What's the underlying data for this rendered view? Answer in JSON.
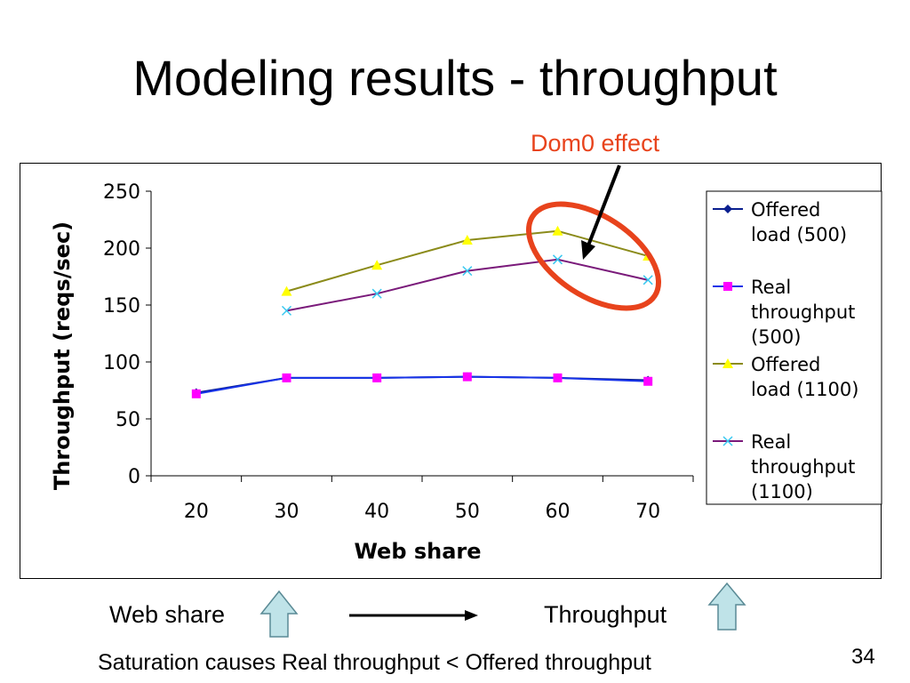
{
  "slide": {
    "title": "Modeling results - throughput",
    "annotation": "Dom0 effect",
    "annotation_color": "#e8431c",
    "caption_left": "Web share",
    "caption_right": "Throughput",
    "bottom_note": "Saturation causes Real throughput < Offered throughput",
    "page_number": "34"
  },
  "chart_data": {
    "type": "line",
    "title": "",
    "xlabel": "Web share",
    "ylabel": "Throughput (reqs/sec)",
    "categories": [
      "20",
      "30",
      "40",
      "50",
      "60",
      "70"
    ],
    "ylim": [
      0,
      250
    ],
    "yticks": [
      "0",
      "50",
      "100",
      "150",
      "200",
      "250"
    ],
    "grid": false,
    "legend_position": "right",
    "series": [
      {
        "name": "Offered load (500)",
        "legend_lines": [
          "Offered",
          "load (500)"
        ],
        "values": [
          73,
          86,
          86,
          87,
          86,
          84
        ],
        "color": "#0a1f8f",
        "marker": "diamond"
      },
      {
        "name": "Real throughput (500)",
        "legend_lines": [
          "Real",
          "throughput",
          "(500)"
        ],
        "values": [
          72,
          86,
          86,
          87,
          86,
          83
        ],
        "color": "#1733e8",
        "marker": "square",
        "marker_color": "#ff00ff"
      },
      {
        "name": "Offered load (1100)",
        "legend_lines": [
          "Offered",
          "load (1100)"
        ],
        "values": [
          null,
          162,
          185,
          207,
          215,
          193
        ],
        "color": "#8b8b1a",
        "marker": "triangle",
        "marker_color": "#ffff00"
      },
      {
        "name": "Real throughput (1100)",
        "legend_lines": [
          "Real",
          "throughput",
          "(1100)"
        ],
        "values": [
          null,
          145,
          160,
          180,
          190,
          172
        ],
        "color": "#7a1a7a",
        "marker": "x",
        "marker_color": "#38c8f0"
      }
    ]
  }
}
